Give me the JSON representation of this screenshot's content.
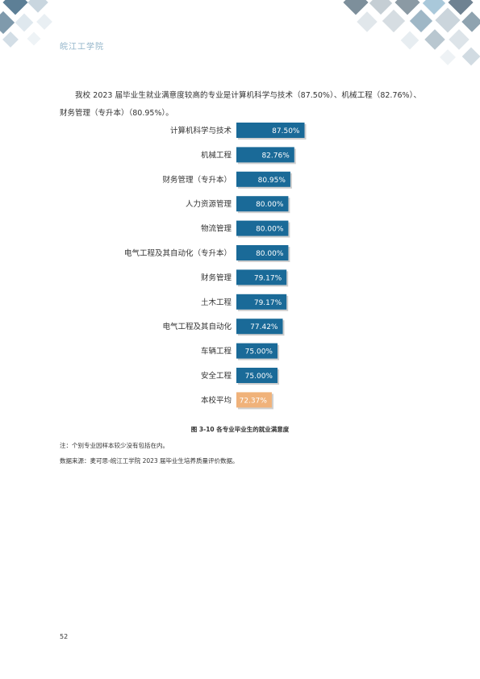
{
  "header": {
    "logo_text": "皖江工学院"
  },
  "intro": {
    "text": "我校 2023 届毕业生就业满意度较高的专业是计算机科学与技术（87.50%）、机械工程（82.76%）、财务管理（专升本）（80.95%）。"
  },
  "chart_data": {
    "type": "bar",
    "orientation": "horizontal",
    "categories": [
      "计算机科学与技术",
      "机械工程",
      "财务管理（专升本）",
      "人力资源管理",
      "物流管理",
      "电气工程及其自动化（专升本）",
      "财务管理",
      "土木工程",
      "电气工程及其自动化",
      "车辆工程",
      "安全工程",
      "本校平均"
    ],
    "values": [
      87.5,
      82.76,
      80.95,
      80.0,
      80.0,
      80.0,
      79.17,
      79.17,
      77.42,
      75.0,
      75.0,
      72.37
    ],
    "data_labels": [
      "87.50%",
      "82.76%",
      "80.95%",
      "80.00%",
      "80.00%",
      "80.00%",
      "79.17%",
      "79.17%",
      "77.42%",
      "75.00%",
      "75.00%",
      "72.37%"
    ],
    "bar_colors": [
      "#1a6a98",
      "#1a6a98",
      "#1a6a98",
      "#1a6a98",
      "#1a6a98",
      "#1a6a98",
      "#1a6a98",
      "#1a6a98",
      "#1a6a98",
      "#1a6a98",
      "#1a6a98",
      "#f0b27a"
    ],
    "value_unit": "%",
    "grid": false,
    "legend": "none"
  },
  "caption": {
    "text": "图 3-10    各专业毕业生的就业满意度"
  },
  "notes": {
    "note1": "注：个别专业因样本较少没有包括在内。",
    "note2": "数据来源：麦可思-皖江工学院 2023 届毕业生培养质量评价数据。"
  },
  "footer": {
    "page_number": "52"
  }
}
